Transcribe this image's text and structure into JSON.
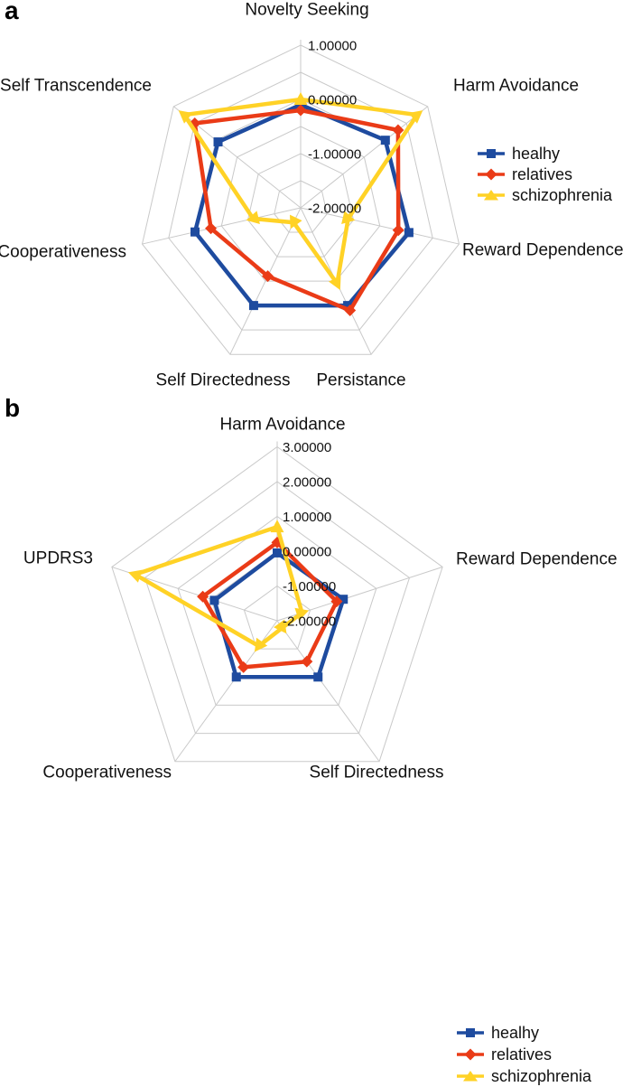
{
  "figure": {
    "text_color": "#111111",
    "grid_color": "#c9c9c9",
    "panels": [
      {
        "panel_label": "a",
        "chart_data": {
          "type": "radar",
          "axes": [
            "Novelty Seeking",
            "Harm Avoidance",
            "Reward Dependence",
            "Persistance",
            "Self Directedness",
            "Cooperativeness",
            "Self Transcendence"
          ],
          "scale": {
            "min": -2,
            "max": 1,
            "ring_step": 0.5,
            "tick_values": [
              1,
              0,
              -1,
              -2
            ],
            "tick_labels": [
              "1.00000",
              "0.00000",
              "-1.00000",
              "-2.00000"
            ]
          },
          "grid": true,
          "legend_position": "right",
          "series": [
            {
              "name": "healhy",
              "color": "#1e4b9f",
              "marker": "square",
              "values": [
                -0.1,
                0.0,
                0.05,
                0.0,
                0.0,
                0.0,
                -0.05
              ]
            },
            {
              "name": "relatives",
              "color": "#ea3b17",
              "marker": "diamond",
              "values": [
                -0.2,
                0.3,
                -0.15,
                0.1,
                -0.6,
                -0.3,
                0.5
              ]
            },
            {
              "name": "schizophrenia",
              "color": "#ffd226",
              "marker": "triangle",
              "values": [
                0.0,
                0.75,
                -1.1,
                -0.45,
                -1.7,
                -1.1,
                0.75
              ]
            }
          ]
        }
      },
      {
        "panel_label": "b",
        "chart_data": {
          "type": "radar",
          "axes": [
            "Harm Avoidance",
            "Reward Dependence",
            "Self Directedness",
            "Cooperativeness",
            "UPDRS3"
          ],
          "scale": {
            "min": -2,
            "max": 3,
            "ring_step": 1,
            "tick_values": [
              3,
              2,
              1,
              0,
              -1,
              -2
            ],
            "tick_labels": [
              "3.00000",
              "2.00000",
              "1.00000",
              "0.00000",
              "-1.00000",
              "-2.00000"
            ]
          },
          "grid": true,
          "legend_position": "right",
          "series": [
            {
              "name": "healhy",
              "color": "#1e4b9f",
              "marker": "square",
              "values": [
                -0.05,
                0.0,
                0.0,
                0.0,
                -0.1
              ]
            },
            {
              "name": "relatives",
              "color": "#ea3b17",
              "marker": "diamond",
              "values": [
                0.25,
                -0.2,
                -0.55,
                -0.35,
                0.25
              ]
            },
            {
              "name": "schizophrenia",
              "color": "#ffd226",
              "marker": "triangle",
              "values": [
                0.7,
                -1.25,
                -1.75,
                -1.1,
                2.3
              ]
            }
          ]
        }
      }
    ]
  }
}
